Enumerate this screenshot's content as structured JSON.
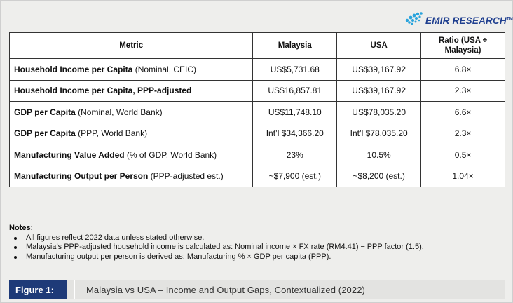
{
  "logo": {
    "name": "EMIR RESEARCH",
    "tm": "TM",
    "accent": "#1f3f8f"
  },
  "table": {
    "headers": [
      "Metric",
      "Malaysia",
      "USA",
      "Ratio (USA ÷ Malaysia)"
    ],
    "rows": [
      {
        "metric_bold": "Household Income per Capita",
        "metric_rest": " (Nominal, CEIC)",
        "malaysia": "US$5,731.68",
        "usa": "US$39,167.92",
        "ratio": "6.8×"
      },
      {
        "metric_bold": "Household Income per Capita, PPP-adjusted",
        "metric_rest": "",
        "malaysia": "US$16,857.81",
        "usa": "US$39,167.92",
        "ratio": "2.3×"
      },
      {
        "metric_bold": "GDP per Capita",
        "metric_rest": " (Nominal, World Bank)",
        "malaysia": "US$11,748.10",
        "usa": "US$78,035.20",
        "ratio": "6.6×"
      },
      {
        "metric_bold": "GDP per Capita",
        "metric_rest": " (PPP, World Bank)",
        "malaysia": "Int’l $34,366.20",
        "usa": "Int’l $78,035.20",
        "ratio": "2.3×"
      },
      {
        "metric_bold": "Manufacturing Value Added",
        "metric_rest": " (% of GDP, World Bank)",
        "malaysia": "23%",
        "usa": "10.5%",
        "ratio": "0.5×"
      },
      {
        "metric_bold": "Manufacturing Output per Person",
        "metric_rest": " (PPP-adjusted est.)",
        "malaysia": "~$7,900 (est.)",
        "usa": "~$8,200 (est.)",
        "ratio": "1.04×"
      }
    ]
  },
  "notes": {
    "title": "Notes",
    "title_suffix": ":",
    "items": [
      "All figures reflect 2022 data unless stated otherwise.",
      "Malaysia’s PPP-adjusted household income is calculated as: Nominal income × FX rate (RM4.41) ÷ PPP factor (1.5).",
      "Manufacturing output per person is derived as: Manufacturing % × GDP per capita (PPP)."
    ]
  },
  "caption": {
    "label": "Figure 1:",
    "text": "Malaysia vs USA – Income and Output Gaps, Contextualized (2022)",
    "label_bg": "#1e3a78"
  }
}
